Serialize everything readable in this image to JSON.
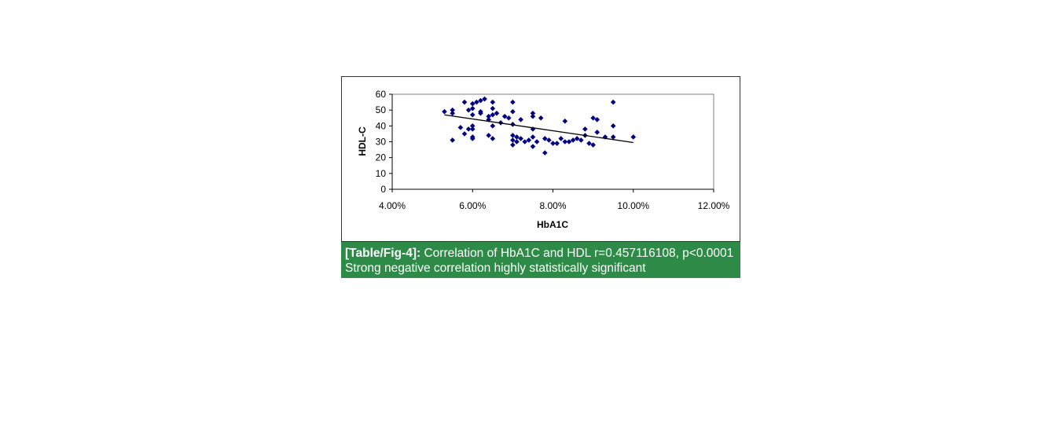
{
  "chart_data": {
    "type": "scatter",
    "xlabel": "HbA1C",
    "ylabel": "HDL-C",
    "xlim": [
      0.04,
      0.12
    ],
    "ylim": [
      0,
      60
    ],
    "x_ticks": [
      "4.00%",
      "6.00%",
      "8.00%",
      "10.00%",
      "12.00%"
    ],
    "y_ticks": [
      "0",
      "10",
      "20",
      "30",
      "40",
      "50",
      "60"
    ],
    "marker_color": "#000080",
    "trendline": {
      "x": [
        0.053,
        0.1
      ],
      "y": [
        47,
        29.5
      ]
    },
    "points": [
      [
        0.053,
        49
      ],
      [
        0.055,
        50
      ],
      [
        0.055,
        48
      ],
      [
        0.055,
        31
      ],
      [
        0.057,
        39
      ],
      [
        0.058,
        55
      ],
      [
        0.058,
        35
      ],
      [
        0.059,
        50
      ],
      [
        0.059,
        38
      ],
      [
        0.06,
        54
      ],
      [
        0.06,
        51
      ],
      [
        0.06,
        47
      ],
      [
        0.06,
        40
      ],
      [
        0.06,
        38
      ],
      [
        0.06,
        33
      ],
      [
        0.06,
        32
      ],
      [
        0.061,
        55
      ],
      [
        0.062,
        49
      ],
      [
        0.062,
        48
      ],
      [
        0.062,
        56
      ],
      [
        0.063,
        57
      ],
      [
        0.064,
        46
      ],
      [
        0.064,
        44
      ],
      [
        0.064,
        34
      ],
      [
        0.065,
        55
      ],
      [
        0.065,
        51
      ],
      [
        0.065,
        47
      ],
      [
        0.065,
        40
      ],
      [
        0.065,
        32
      ],
      [
        0.066,
        48
      ],
      [
        0.067,
        42
      ],
      [
        0.068,
        46
      ],
      [
        0.069,
        45
      ],
      [
        0.07,
        55
      ],
      [
        0.07,
        49
      ],
      [
        0.07,
        41
      ],
      [
        0.07,
        34
      ],
      [
        0.07,
        31
      ],
      [
        0.07,
        28
      ],
      [
        0.071,
        30
      ],
      [
        0.071,
        33
      ],
      [
        0.072,
        44
      ],
      [
        0.072,
        32
      ],
      [
        0.073,
        30
      ],
      [
        0.074,
        31
      ],
      [
        0.075,
        48
      ],
      [
        0.075,
        46
      ],
      [
        0.075,
        38
      ],
      [
        0.075,
        33
      ],
      [
        0.075,
        27
      ],
      [
        0.076,
        30
      ],
      [
        0.077,
        45
      ],
      [
        0.078,
        32
      ],
      [
        0.078,
        23
      ],
      [
        0.079,
        31
      ],
      [
        0.08,
        29
      ],
      [
        0.081,
        29
      ],
      [
        0.082,
        32
      ],
      [
        0.083,
        43
      ],
      [
        0.083,
        30
      ],
      [
        0.084,
        30
      ],
      [
        0.085,
        31
      ],
      [
        0.086,
        32
      ],
      [
        0.087,
        31
      ],
      [
        0.088,
        38
      ],
      [
        0.088,
        34
      ],
      [
        0.089,
        29
      ],
      [
        0.09,
        28
      ],
      [
        0.09,
        45
      ],
      [
        0.091,
        44
      ],
      [
        0.091,
        36
      ],
      [
        0.093,
        33
      ],
      [
        0.095,
        55
      ],
      [
        0.095,
        40
      ],
      [
        0.095,
        33
      ],
      [
        0.1,
        33
      ]
    ]
  },
  "caption": {
    "label": "[Table/Fig-4]:",
    "text": " Correlation of HbA1C and HDL r=0.457116108, p<0.0001 Strong negative correlation highly statistically significant"
  }
}
